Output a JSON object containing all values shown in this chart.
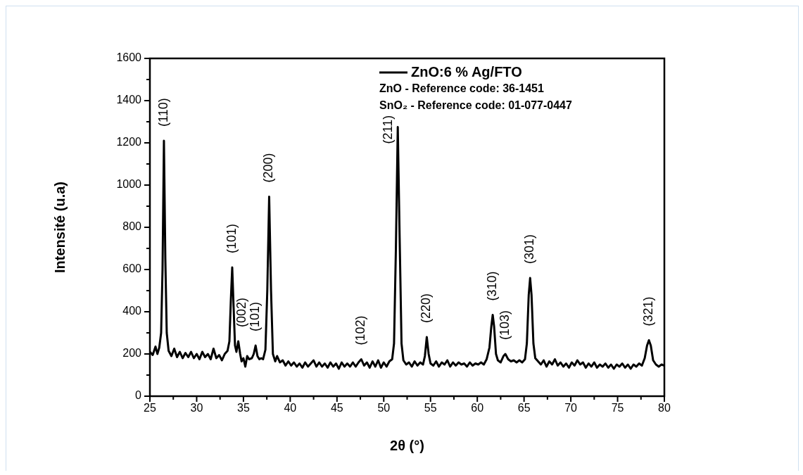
{
  "chart_data": {
    "type": "line",
    "xlabel": "2θ (°)",
    "ylabel": "Intensité (u.a)",
    "xlim": [
      25,
      80
    ],
    "ylim": [
      0,
      1600
    ],
    "xticks": [
      25,
      {
        "value": 27.5,
        "label": null
      },
      30,
      {
        "value": 32.5,
        "label": null
      },
      35,
      {
        "value": 37.5,
        "label": null
      },
      40,
      {
        "value": 42.5,
        "label": null
      },
      45,
      {
        "value": 47.5,
        "label": null
      },
      50,
      {
        "value": 52.5,
        "label": null
      },
      55,
      {
        "value": 57.5,
        "label": null
      },
      60,
      {
        "value": 62.5,
        "label": null
      },
      65,
      {
        "value": 67.5,
        "label": null
      },
      70,
      {
        "value": 72.5,
        "label": null
      },
      75,
      {
        "value": 77.5,
        "label": null
      },
      80
    ],
    "yticks": [
      0,
      {
        "value": 100,
        "label": null
      },
      200,
      {
        "value": 300,
        "label": null
      },
      400,
      {
        "value": 500,
        "label": null
      },
      600,
      {
        "value": 700,
        "label": null
      },
      800,
      {
        "value": 900,
        "label": null
      },
      1000,
      {
        "value": 1100,
        "label": null
      },
      1200,
      {
        "value": 1300,
        "label": null
      },
      1400,
      {
        "value": 1500,
        "label": null
      },
      1600
    ],
    "grid": false,
    "legend": "top right",
    "marker": "none",
    "line_style": "solid",
    "series": [
      {
        "name": "ZnO:6 % Ag/FTO",
        "color": "#000000",
        "x": [
          25.0,
          25.3,
          25.6,
          25.8,
          26.0,
          26.2,
          26.35,
          26.5,
          26.65,
          26.8,
          27.0,
          27.3,
          27.6,
          27.9,
          28.2,
          28.5,
          28.8,
          29.1,
          29.4,
          29.7,
          30.0,
          30.3,
          30.6,
          30.9,
          31.2,
          31.5,
          31.8,
          32.1,
          32.4,
          32.7,
          33.0,
          33.3,
          33.5,
          33.65,
          33.8,
          33.95,
          34.1,
          34.25,
          34.45,
          34.65,
          34.8,
          35.0,
          35.2,
          35.4,
          35.6,
          35.9,
          36.1,
          36.3,
          36.5,
          36.7,
          36.9,
          37.1,
          37.35,
          37.55,
          37.75,
          37.95,
          38.15,
          38.4,
          38.6,
          38.9,
          39.2,
          39.5,
          39.8,
          40.1,
          40.4,
          40.7,
          41.0,
          41.3,
          41.6,
          41.9,
          42.2,
          42.5,
          42.8,
          43.1,
          43.4,
          43.7,
          44.0,
          44.3,
          44.6,
          44.9,
          45.2,
          45.5,
          45.8,
          46.1,
          46.4,
          46.7,
          47.0,
          47.3,
          47.6,
          47.9,
          48.2,
          48.5,
          48.8,
          49.1,
          49.4,
          49.7,
          50.0,
          50.3,
          50.6,
          50.9,
          51.1,
          51.3,
          51.5,
          51.7,
          51.9,
          52.1,
          52.4,
          52.7,
          53.0,
          53.3,
          53.6,
          53.9,
          54.2,
          54.4,
          54.6,
          54.8,
          55.0,
          55.3,
          55.6,
          55.9,
          56.2,
          56.5,
          56.8,
          57.1,
          57.4,
          57.7,
          58.0,
          58.3,
          58.6,
          58.9,
          59.2,
          59.5,
          59.8,
          60.1,
          60.4,
          60.7,
          61.0,
          61.3,
          61.5,
          61.65,
          61.8,
          62.0,
          62.2,
          62.5,
          62.8,
          63.0,
          63.3,
          63.6,
          63.9,
          64.2,
          64.5,
          64.8,
          65.1,
          65.3,
          65.5,
          65.65,
          65.8,
          66.0,
          66.2,
          66.5,
          66.8,
          67.1,
          67.4,
          67.7,
          68.0,
          68.3,
          68.6,
          68.9,
          69.2,
          69.5,
          69.8,
          70.1,
          70.4,
          70.7,
          71.0,
          71.3,
          71.6,
          71.9,
          72.2,
          72.5,
          72.8,
          73.1,
          73.4,
          73.7,
          74.0,
          74.3,
          74.6,
          74.9,
          75.2,
          75.5,
          75.8,
          76.1,
          76.4,
          76.7,
          77.0,
          77.3,
          77.6,
          77.9,
          78.15,
          78.35,
          78.55,
          78.8,
          79.1,
          79.4,
          79.7,
          80.0
        ],
        "values": [
          210,
          195,
          235,
          200,
          230,
          300,
          600,
          1210,
          650,
          300,
          215,
          190,
          225,
          185,
          210,
          180,
          205,
          185,
          210,
          180,
          200,
          175,
          210,
          185,
          200,
          175,
          225,
          180,
          195,
          170,
          200,
          215,
          260,
          450,
          610,
          420,
          240,
          210,
          260,
          200,
          165,
          180,
          140,
          190,
          175,
          180,
          200,
          240,
          190,
          175,
          180,
          175,
          220,
          500,
          945,
          500,
          200,
          165,
          190,
          160,
          170,
          145,
          165,
          145,
          160,
          140,
          155,
          135,
          160,
          140,
          155,
          170,
          140,
          160,
          140,
          155,
          135,
          160,
          140,
          155,
          130,
          160,
          140,
          155,
          140,
          160,
          140,
          160,
          175,
          145,
          160,
          135,
          165,
          140,
          170,
          135,
          160,
          140,
          165,
          175,
          250,
          700,
          1275,
          750,
          250,
          170,
          150,
          160,
          140,
          165,
          145,
          160,
          150,
          190,
          280,
          200,
          155,
          145,
          165,
          140,
          160,
          150,
          170,
          140,
          160,
          145,
          160,
          150,
          155,
          140,
          160,
          145,
          155,
          150,
          160,
          150,
          175,
          230,
          330,
          385,
          330,
          200,
          170,
          160,
          190,
          200,
          175,
          165,
          170,
          160,
          170,
          160,
          175,
          250,
          480,
          560,
          480,
          250,
          180,
          165,
          150,
          170,
          140,
          165,
          150,
          175,
          145,
          160,
          140,
          155,
          135,
          160,
          145,
          170,
          150,
          160,
          135,
          155,
          140,
          160,
          135,
          150,
          140,
          155,
          135,
          150,
          130,
          150,
          140,
          155,
          135,
          150,
          130,
          150,
          140,
          155,
          145,
          180,
          240,
          265,
          240,
          170,
          150,
          140,
          150,
          145
        ]
      }
    ],
    "annotations": [
      "ZnO - Reference code: 36-1451",
      "SnO₂ - Reference code: 01-077-0447",
      {
        "text": "(110)",
        "x": 26.5,
        "y": 1210
      },
      {
        "text": "(101)",
        "x": 33.8,
        "y": 610
      },
      {
        "text": "(200)",
        "x": 37.75,
        "y": 945
      },
      {
        "text": "(211)",
        "x": 51.5,
        "y": 1275
      },
      {
        "text": "(220)",
        "x": 54.6,
        "y": 280
      },
      {
        "text": "(310)",
        "x": 61.65,
        "y": 385
      },
      {
        "text": "(301)",
        "x": 65.65,
        "y": 560
      },
      {
        "text": "(321)",
        "x": 78.35,
        "y": 265
      },
      {
        "text": "(101)",
        "x": 36.3,
        "y": 240
      },
      {
        "text": "(002)",
        "x": 34.45,
        "y": 260
      },
      {
        "text": "(102)",
        "x": 47.6,
        "y": 175
      },
      {
        "text": "(103)",
        "x": 63.0,
        "y": 200
      }
    ]
  }
}
